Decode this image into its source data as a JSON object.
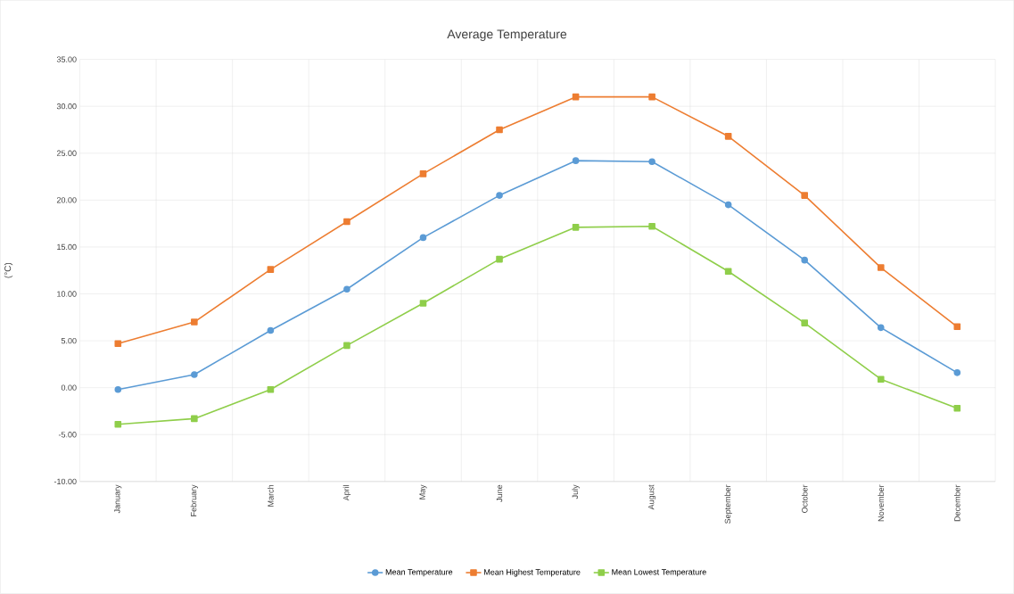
{
  "chart_data": {
    "type": "line",
    "title": "Average Temperature",
    "ylabel": "(°C)",
    "categories": [
      "January",
      "February",
      "March",
      "April",
      "May",
      "June",
      "July",
      "August",
      "September",
      "October",
      "November",
      "December"
    ],
    "series": [
      {
        "name": "Mean Temperature",
        "color": "#5b9bd5",
        "marker": "circle",
        "values": [
          -0.2,
          1.4,
          6.1,
          10.5,
          16.0,
          20.5,
          24.2,
          24.1,
          19.5,
          13.6,
          6.4,
          1.6
        ]
      },
      {
        "name": "Mean Highest Temperature",
        "color": "#ed7d31",
        "marker": "square",
        "values": [
          4.7,
          7.0,
          12.6,
          17.7,
          22.8,
          27.5,
          31.0,
          31.0,
          26.8,
          20.5,
          12.8,
          6.5
        ]
      },
      {
        "name": "Mean Lowest Temperature",
        "color": "#8fce4a",
        "marker": "square",
        "values": [
          -3.9,
          -3.3,
          -0.2,
          4.5,
          9.0,
          13.7,
          17.1,
          17.2,
          12.4,
          6.9,
          0.9,
          -2.2
        ]
      }
    ],
    "ylim": [
      -10,
      35
    ],
    "yticks": [
      {
        "value": -10,
        "label": "-10.00"
      },
      {
        "value": -5,
        "label": "-5.00"
      },
      {
        "value": 0,
        "label": "0.00"
      },
      {
        "value": 5,
        "label": "5.00"
      },
      {
        "value": 10,
        "label": "10.00"
      },
      {
        "value": 15,
        "label": "15.00"
      },
      {
        "value": 20,
        "label": "20.00"
      },
      {
        "value": 25,
        "label": "25.00"
      },
      {
        "value": 30,
        "label": "30.00"
      },
      {
        "value": 35,
        "label": "35.00"
      }
    ],
    "grid": true,
    "legend": "bottom",
    "line_style": "solid"
  }
}
